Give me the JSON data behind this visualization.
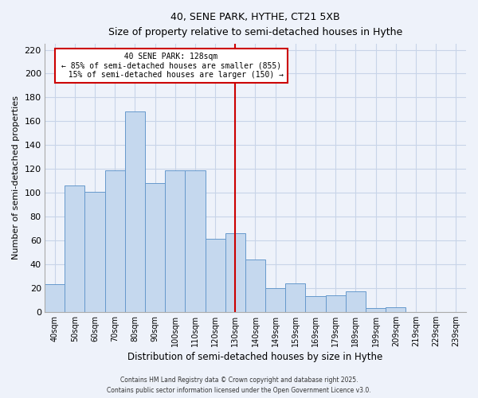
{
  "title": "40, SENE PARK, HYTHE, CT21 5XB",
  "subtitle": "Size of property relative to semi-detached houses in Hythe",
  "xlabel": "Distribution of semi-detached houses by size in Hythe",
  "ylabel": "Number of semi-detached properties",
  "bar_labels": [
    "40sqm",
    "50sqm",
    "60sqm",
    "70sqm",
    "80sqm",
    "90sqm",
    "100sqm",
    "110sqm",
    "120sqm",
    "130sqm",
    "140sqm",
    "149sqm",
    "159sqm",
    "169sqm",
    "179sqm",
    "189sqm",
    "199sqm",
    "209sqm",
    "219sqm",
    "229sqm",
    "239sqm"
  ],
  "bar_values": [
    23,
    106,
    101,
    119,
    168,
    108,
    119,
    119,
    61,
    66,
    44,
    20,
    24,
    13,
    14,
    17,
    3,
    4,
    0,
    0,
    0
  ],
  "bar_color": "#c5d8ee",
  "bar_edge_color": "#6699cc",
  "grid_color": "#c8d4e8",
  "background_color": "#eef2fa",
  "vline_x": 9.0,
  "vline_color": "#cc0000",
  "annotation_text": "  40 SENE PARK: 128sqm  \n← 85% of semi-detached houses are smaller (855)\n  15% of semi-detached houses are larger (150) →",
  "annotation_box_color": "#ffffff",
  "annotation_box_edge": "#cc0000",
  "ylim": [
    0,
    225
  ],
  "yticks": [
    0,
    20,
    40,
    60,
    80,
    100,
    120,
    140,
    160,
    180,
    200,
    220
  ],
  "footer_line1": "Contains HM Land Registry data © Crown copyright and database right 2025.",
  "footer_line2": "Contains public sector information licensed under the Open Government Licence v3.0."
}
